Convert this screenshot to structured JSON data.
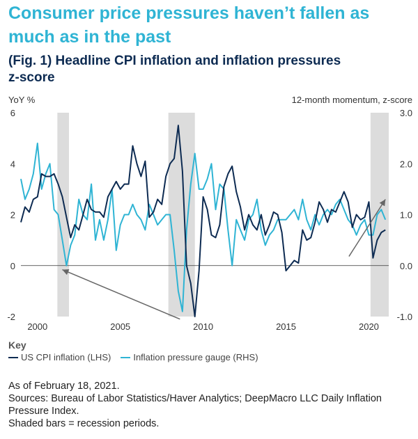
{
  "header": {
    "title_line1": "Consumer price pressures haven’t fallen as",
    "title_line2": "much as in the past",
    "subtitle_line1": "(Fig. 1) Headline CPI inflation and inflation pressures",
    "subtitle_line2": "z-score"
  },
  "colors": {
    "cpi": "#0d2b52",
    "gauge": "#2fb4d4",
    "recession": "#dcdcdc",
    "arrow": "#666666"
  },
  "chart_data": {
    "type": "line",
    "ylabel_left": "YoY %",
    "ylabel_right": "12-month momentum, z-score",
    "ylim_left": [
      -2,
      6
    ],
    "ylim_right": [
      -1.0,
      3.0
    ],
    "left_ticks": [
      "6",
      "4",
      "2",
      "0",
      "-2"
    ],
    "right_ticks": [
      "3.0",
      "2.0",
      "1.0",
      "0.0",
      "-1.0"
    ],
    "x_ticks": [
      "2000",
      "2005",
      "2010",
      "2015",
      "2020"
    ],
    "x_tick_years": [
      2000,
      2005,
      2010,
      2015,
      2020
    ],
    "xlim": [
      1999,
      2021.2
    ],
    "recessions": [
      [
        2001.2,
        2001.9
      ],
      [
        2007.9,
        2009.5
      ],
      [
        2020.1,
        2021.2
      ]
    ],
    "series": [
      {
        "name": "US CPI inflation (LHS)",
        "axis": "left",
        "x": [
          1999.0,
          1999.25,
          1999.5,
          1999.75,
          2000.0,
          2000.25,
          2000.5,
          2000.75,
          2001.0,
          2001.25,
          2001.5,
          2001.75,
          2002.0,
          2002.25,
          2002.5,
          2002.75,
          2003.0,
          2003.25,
          2003.5,
          2003.75,
          2004.0,
          2004.25,
          2004.5,
          2004.75,
          2005.0,
          2005.25,
          2005.5,
          2005.75,
          2006.0,
          2006.25,
          2006.5,
          2006.75,
          2007.0,
          2007.25,
          2007.5,
          2007.75,
          2008.0,
          2008.25,
          2008.5,
          2008.75,
          2009.0,
          2009.25,
          2009.5,
          2009.75,
          2010.0,
          2010.25,
          2010.5,
          2010.75,
          2011.0,
          2011.25,
          2011.5,
          2011.75,
          2012.0,
          2012.25,
          2012.5,
          2012.75,
          2013.0,
          2013.25,
          2013.5,
          2013.75,
          2014.0,
          2014.25,
          2014.5,
          2014.75,
          2015.0,
          2015.25,
          2015.5,
          2015.75,
          2016.0,
          2016.25,
          2016.5,
          2016.75,
          2017.0,
          2017.25,
          2017.5,
          2017.75,
          2018.0,
          2018.25,
          2018.5,
          2018.75,
          2019.0,
          2019.25,
          2019.5,
          2019.75,
          2020.0,
          2020.25,
          2020.5,
          2020.75,
          2021.0
        ],
        "values": [
          1.7,
          2.3,
          2.1,
          2.6,
          2.7,
          3.6,
          3.5,
          3.5,
          3.6,
          3.2,
          2.7,
          1.9,
          1.1,
          1.6,
          1.4,
          2.0,
          2.6,
          2.2,
          2.1,
          2.1,
          1.9,
          2.7,
          3.0,
          3.3,
          3.0,
          3.2,
          3.2,
          4.7,
          4.0,
          3.5,
          4.1,
          1.9,
          2.1,
          2.6,
          2.4,
          3.5,
          4.0,
          4.2,
          5.5,
          3.7,
          0.0,
          -0.7,
          -2.0,
          -0.2,
          2.7,
          2.2,
          1.2,
          1.1,
          1.6,
          3.1,
          3.6,
          3.9,
          2.9,
          2.3,
          1.4,
          2.0,
          1.6,
          1.4,
          2.0,
          1.2,
          1.6,
          2.1,
          2.0,
          1.3,
          -0.2,
          0.0,
          0.2,
          0.1,
          1.4,
          1.0,
          1.1,
          1.7,
          2.5,
          2.2,
          1.7,
          2.2,
          2.1,
          2.5,
          2.9,
          2.5,
          1.5,
          2.0,
          1.8,
          1.9,
          2.5,
          0.3,
          1.0,
          1.3,
          1.4
        ]
      },
      {
        "name": "Inflation pressure gauge (RHS)",
        "axis": "right",
        "x": [
          1999.0,
          1999.25,
          1999.5,
          1999.75,
          2000.0,
          2000.25,
          2000.5,
          2000.75,
          2001.0,
          2001.25,
          2001.5,
          2001.75,
          2002.0,
          2002.25,
          2002.5,
          2002.75,
          2003.0,
          2003.25,
          2003.5,
          2003.75,
          2004.0,
          2004.25,
          2004.5,
          2004.75,
          2005.0,
          2005.25,
          2005.5,
          2005.75,
          2006.0,
          2006.25,
          2006.5,
          2006.75,
          2007.0,
          2007.25,
          2007.5,
          2007.75,
          2008.0,
          2008.25,
          2008.5,
          2008.75,
          2009.0,
          2009.25,
          2009.5,
          2009.75,
          2010.0,
          2010.25,
          2010.5,
          2010.75,
          2011.0,
          2011.25,
          2011.5,
          2011.75,
          2012.0,
          2012.25,
          2012.5,
          2012.75,
          2013.0,
          2013.25,
          2013.5,
          2013.75,
          2014.0,
          2014.25,
          2014.5,
          2014.75,
          2015.0,
          2015.25,
          2015.5,
          2015.75,
          2016.0,
          2016.25,
          2016.5,
          2016.75,
          2017.0,
          2017.25,
          2017.5,
          2017.75,
          2018.0,
          2018.25,
          2018.5,
          2018.75,
          2019.0,
          2019.25,
          2019.5,
          2019.75,
          2020.0,
          2020.25,
          2020.5,
          2020.75,
          2021.0
        ],
        "values": [
          1.7,
          1.3,
          1.5,
          1.8,
          2.4,
          1.5,
          1.8,
          2.0,
          1.1,
          1.0,
          0.5,
          0.0,
          0.4,
          0.6,
          1.3,
          1.0,
          0.9,
          1.6,
          0.5,
          0.9,
          0.5,
          0.9,
          1.5,
          0.3,
          0.8,
          1.0,
          1.0,
          1.2,
          1.0,
          0.9,
          0.7,
          1.2,
          1.0,
          0.8,
          0.9,
          1.0,
          1.0,
          0.3,
          -0.5,
          -0.9,
          0.7,
          1.6,
          2.2,
          1.5,
          1.5,
          1.7,
          2.0,
          1.1,
          1.6,
          1.5,
          0.7,
          0.0,
          0.9,
          0.7,
          0.5,
          0.9,
          1.0,
          1.3,
          0.7,
          0.4,
          0.6,
          0.7,
          0.9,
          0.9,
          0.9,
          1.0,
          1.1,
          0.9,
          1.3,
          0.9,
          0.7,
          1.0,
          0.8,
          1.0,
          1.1,
          1.0,
          1.2,
          1.3,
          1.1,
          0.9,
          0.8,
          0.6,
          0.8,
          0.9,
          0.6,
          0.6,
          1.0,
          1.1,
          0.9
        ]
      }
    ],
    "arrows": [
      {
        "from": [
          2008.6,
          -1.05
        ],
        "to": [
          2001.5,
          -0.08
        ],
        "axis": "right"
      },
      {
        "from": [
          2018.8,
          0.18
        ],
        "to": [
          2021.0,
          1.3
        ],
        "axis": "right"
      }
    ]
  },
  "key": {
    "title": "Key",
    "items": [
      {
        "label": "US CPI inflation (LHS)"
      },
      {
        "label": "Inflation pressure gauge (RHS)"
      }
    ]
  },
  "notes": {
    "as_of": "As of February 18, 2021.",
    "sources": "Sources: Bureau of Labor Statistics/Haver Analytics; DeepMacro LLC Daily Inflation Pressure Index.",
    "shaded": "Shaded bars = recession periods."
  }
}
